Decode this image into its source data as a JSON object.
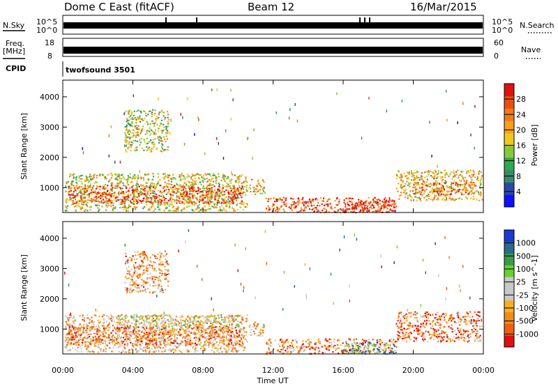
{
  "header": {
    "station": "Dome C East (fitACF)",
    "beam": "Beam 12",
    "date": "16/Mar/2015"
  },
  "strips": {
    "nsky_label": "N.Sky",
    "nsky_top": "10^5",
    "nsky_bottom": "10^0",
    "nsearch_label": "N.Search",
    "nsearch_top": "10^5",
    "nsearch_bottom": "10^0",
    "freq_label_line1": "Freq.",
    "freq_label_line2": "[MHz]",
    "freq_top": "18",
    "freq_bottom": "8",
    "nave_label": "Nave",
    "nave_top": "60",
    "nave_bottom": "0",
    "cpid_label": "CPID",
    "cpid_value": "twofsound 3501"
  },
  "colors": {
    "power_scale": [
      "#1010ff",
      "#2a48a8",
      "#3a8a6a",
      "#2fa84f",
      "#88c83a",
      "#f0c820",
      "#f6a01c",
      "#f07a18",
      "#e85010",
      "#e01010"
    ],
    "velocity_scale": [
      "#e01010",
      "#f06010",
      "#f08c18",
      "#f6b020",
      "#c8c8c8",
      "#c8c8c8",
      "#6ad030",
      "#3a9a4a",
      "#2a6a8a",
      "#1a3ad0"
    ]
  },
  "chart_data": [
    {
      "type": "heatmap",
      "name": "power",
      "ylabel": "Slant Range [km]",
      "ylim": [
        180,
        4550
      ],
      "yticks": [
        1000,
        2000,
        3000,
        4000
      ],
      "xlim": [
        0,
        24
      ],
      "xticks": [
        "00:00",
        "04:00",
        "08:00",
        "12:00",
        "16:00",
        "20:00",
        "00:00"
      ],
      "colorbar_label": "Power [dB]",
      "colorbar_ticks": [
        "4",
        "8",
        "12",
        "16",
        "20",
        "24",
        "28"
      ],
      "colorbar_range": [
        0,
        32
      ],
      "regions": [
        {
          "t0": 0.1,
          "t1": 10.5,
          "r0": 250,
          "r1": 1500,
          "level": 0.55
        },
        {
          "t0": 0.3,
          "t1": 10.2,
          "r0": 500,
          "r1": 1100,
          "level": 0.85
        },
        {
          "t0": 3.5,
          "t1": 6.0,
          "r0": 2200,
          "r1": 3600,
          "level": 0.5
        },
        {
          "t0": 10.6,
          "t1": 11.5,
          "r0": 800,
          "r1": 1300,
          "level": 0.6
        },
        {
          "t0": 11.5,
          "t1": 19.0,
          "r0": 200,
          "r1": 700,
          "level": 0.85
        },
        {
          "t0": 16.0,
          "t1": 19.0,
          "r0": 200,
          "r1": 600,
          "level": 0.95
        },
        {
          "t0": 19.0,
          "t1": 23.9,
          "r0": 600,
          "r1": 1600,
          "level": 0.6
        },
        {
          "t0": 20.0,
          "t1": 23.5,
          "r0": 800,
          "r1": 1200,
          "level": 0.8
        }
      ]
    },
    {
      "type": "heatmap",
      "name": "velocity",
      "ylabel": "Slant Range [km]",
      "ylim": [
        180,
        4550
      ],
      "yticks": [
        1000,
        2000,
        3000,
        4000
      ],
      "xlim": [
        0,
        24
      ],
      "xticks": [
        "00:00",
        "04:00",
        "08:00",
        "12:00",
        "16:00",
        "20:00",
        "00:00"
      ],
      "xlabel": "Time UT",
      "colorbar_label": "Velocity [m s^-1]",
      "colorbar_ticks": [
        "-1000",
        "-500",
        "-100",
        "-25",
        "25",
        "100",
        "500",
        "1000"
      ],
      "colorbar_range": [
        -1500,
        1500
      ],
      "regions": [
        {
          "t0": 0.1,
          "t1": 10.5,
          "r0": 250,
          "r1": 1500,
          "level": 0.35
        },
        {
          "t0": 0.3,
          "t1": 10.2,
          "r0": 500,
          "r1": 1100,
          "level": 0.2
        },
        {
          "t0": 3.0,
          "t1": 10.0,
          "r0": 1100,
          "r1": 1500,
          "level": 0.5
        },
        {
          "t0": 3.5,
          "t1": 6.0,
          "r0": 2200,
          "r1": 3600,
          "level": 0.3
        },
        {
          "t0": 10.6,
          "t1": 11.5,
          "r0": 800,
          "r1": 1300,
          "level": 0.35
        },
        {
          "t0": 11.5,
          "t1": 19.0,
          "r0": 200,
          "r1": 700,
          "level": 0.25
        },
        {
          "t0": 16.0,
          "t1": 19.0,
          "r0": 200,
          "r1": 600,
          "level": 0.7
        },
        {
          "t0": 19.0,
          "t1": 23.9,
          "r0": 600,
          "r1": 1600,
          "level": 0.2
        }
      ]
    }
  ]
}
